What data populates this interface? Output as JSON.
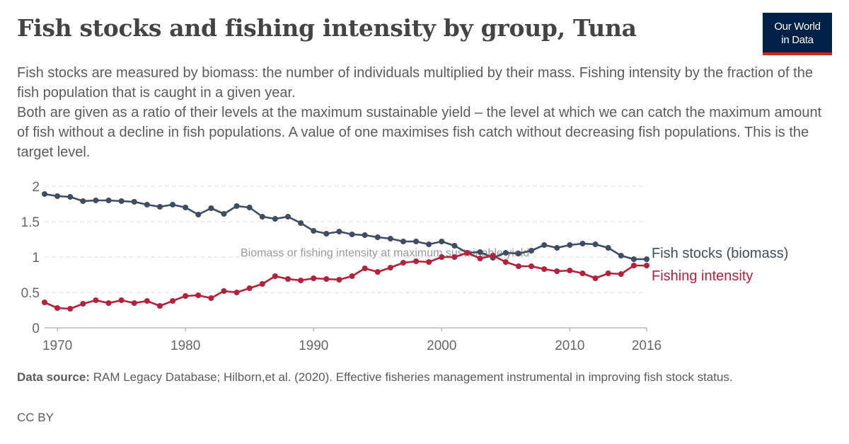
{
  "header": {
    "title": "Fish stocks and fishing intensity by group, Tuna",
    "subtitle_lines": [
      "Fish stocks are measured by biomass: the number of individuals multiplied by their mass. Fishing intensity by the fraction of the fish population that is caught in a given year.",
      "Both are given as a ratio of their levels at the maximum sustainable yield – the level at which we can catch the maximum amount of fish without a decline in fish populations. A value of one maximises fish catch without decreasing fish populations. This is the target level."
    ]
  },
  "logo": {
    "line1": "Our World",
    "line2": "in Data"
  },
  "footer": {
    "source_label": "Data source:",
    "source_text": "RAM Legacy Database; Hilborn,et al. (2020). Effective fisheries management instrumental in improving fish stock status.",
    "license": "CC BY"
  },
  "colors": {
    "biomass": "#3e4d62",
    "intensity": "#b5203b",
    "axis_text": "#666666",
    "grid": "#dddddd",
    "reference_text": "#9a9a9a"
  },
  "chart_data": {
    "type": "line",
    "xlim": [
      1969,
      2016
    ],
    "ylim": [
      0,
      2
    ],
    "x_ticks": [
      1970,
      1980,
      1990,
      2000,
      2010,
      2016
    ],
    "y_ticks": [
      0,
      0.5,
      1,
      1.5,
      2
    ],
    "grid": "horizontal dashed",
    "reference_line": {
      "y": 1,
      "label": "Biomass or fishing intensity at maximum sustainable yield"
    },
    "x": [
      1969,
      1970,
      1971,
      1972,
      1973,
      1974,
      1975,
      1976,
      1977,
      1978,
      1979,
      1980,
      1981,
      1982,
      1983,
      1984,
      1985,
      1986,
      1987,
      1988,
      1989,
      1990,
      1991,
      1992,
      1993,
      1994,
      1995,
      1996,
      1997,
      1998,
      1999,
      2000,
      2001,
      2002,
      2003,
      2004,
      2005,
      2006,
      2007,
      2008,
      2009,
      2010,
      2011,
      2012,
      2013,
      2014,
      2015,
      2016
    ],
    "series": [
      {
        "name": "Fish stocks (biomass)",
        "color_key": "biomass",
        "values": [
          1.89,
          1.86,
          1.85,
          1.79,
          1.8,
          1.8,
          1.79,
          1.78,
          1.74,
          1.71,
          1.74,
          1.7,
          1.6,
          1.69,
          1.61,
          1.72,
          1.7,
          1.57,
          1.54,
          1.57,
          1.48,
          1.37,
          1.33,
          1.36,
          1.32,
          1.31,
          1.28,
          1.26,
          1.22,
          1.22,
          1.18,
          1.22,
          1.16,
          1.06,
          1.07,
          0.99,
          1.06,
          1.05,
          1.09,
          1.17,
          1.13,
          1.17,
          1.19,
          1.18,
          1.13,
          1.02,
          0.97,
          0.97
        ]
      },
      {
        "name": "Fishing intensity",
        "color_key": "intensity",
        "values": [
          0.36,
          0.28,
          0.27,
          0.34,
          0.39,
          0.35,
          0.39,
          0.35,
          0.38,
          0.31,
          0.38,
          0.45,
          0.46,
          0.42,
          0.52,
          0.5,
          0.56,
          0.62,
          0.73,
          0.69,
          0.67,
          0.7,
          0.69,
          0.68,
          0.73,
          0.84,
          0.79,
          0.85,
          0.92,
          0.94,
          0.93,
          1.0,
          1.0,
          1.06,
          0.98,
          1.02,
          0.93,
          0.87,
          0.87,
          0.83,
          0.8,
          0.81,
          0.77,
          0.7,
          0.77,
          0.76,
          0.88,
          0.88
        ]
      }
    ]
  }
}
